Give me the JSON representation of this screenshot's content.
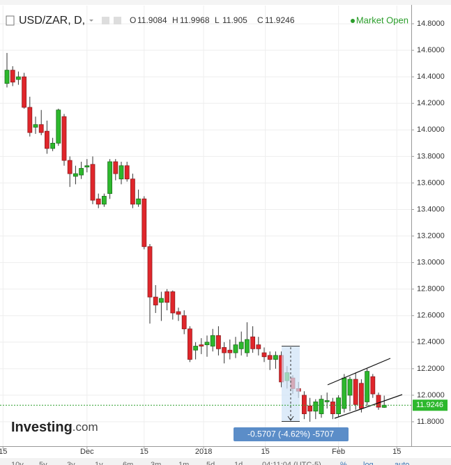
{
  "chart_data": {
    "type": "candlestick",
    "title": "USD/ZAR, D,",
    "status": "Market Open",
    "ohlc_labels": [
      "O",
      "H",
      "L",
      "C"
    ],
    "open": [
      14.35,
      14.45,
      14.38,
      14.4,
      14.17,
      14.02,
      14.04,
      13.99,
      13.86,
      13.9,
      14.1,
      13.77,
      13.65,
      13.66,
      13.72,
      13.74,
      13.48,
      13.44,
      13.52,
      13.76,
      13.63,
      13.73,
      13.63,
      13.44,
      13.48,
      13.12,
      12.74,
      12.7,
      12.78,
      12.78,
      12.63,
      12.6,
      12.5,
      12.34,
      12.38,
      12.38,
      12.37,
      12.45,
      12.36,
      12.34,
      12.32,
      12.35,
      12.32,
      12.44,
      12.38,
      12.32,
      12.3,
      12.27,
      12.3,
      12.11,
      12.13,
      12.05,
      12.0,
      11.92,
      11.88,
      11.86,
      11.95,
      11.95,
      11.86,
      11.9,
      12.0,
      12.12,
      12.09,
      11.95,
      12.14,
      12.0,
      11.9084
    ],
    "high": [
      14.58,
      14.48,
      14.44,
      14.43,
      14.25,
      14.1,
      14.15,
      14.07,
      13.94,
      14.16,
      14.12,
      13.8,
      13.73,
      13.76,
      13.78,
      13.8,
      13.52,
      13.52,
      13.78,
      13.78,
      13.76,
      13.76,
      13.67,
      13.55,
      13.5,
      13.14,
      12.83,
      12.78,
      12.8,
      12.79,
      12.66,
      12.64,
      12.52,
      12.4,
      12.43,
      12.45,
      12.5,
      12.52,
      12.4,
      12.42,
      12.44,
      12.48,
      12.55,
      12.52,
      12.44,
      12.36,
      12.33,
      12.33,
      12.33,
      12.22,
      12.15,
      12.1,
      12.03,
      11.98,
      11.97,
      12.0,
      12.02,
      11.98,
      12.0,
      12.16,
      12.14,
      12.17,
      12.12,
      12.2,
      12.16,
      12.02,
      11.9968
    ],
    "low": [
      14.32,
      14.33,
      14.34,
      14.16,
      13.95,
      13.97,
      13.96,
      13.82,
      13.84,
      13.88,
      13.73,
      13.57,
      13.59,
      13.63,
      13.68,
      13.44,
      13.41,
      13.42,
      13.48,
      13.62,
      13.59,
      13.61,
      13.41,
      13.42,
      13.1,
      12.54,
      12.62,
      12.56,
      12.64,
      12.57,
      12.56,
      12.46,
      12.25,
      12.27,
      12.31,
      12.29,
      12.33,
      12.3,
      12.24,
      12.27,
      12.28,
      12.3,
      12.29,
      12.32,
      12.3,
      12.25,
      12.19,
      12.2,
      12.06,
      12.05,
      12.01,
      11.98,
      11.82,
      11.8,
      11.82,
      11.83,
      11.9,
      11.82,
      11.84,
      11.87,
      11.88,
      11.89,
      11.87,
      11.92,
      11.98,
      11.89,
      11.905
    ],
    "close": [
      14.45,
      14.36,
      14.4,
      14.17,
      13.98,
      14.04,
      13.98,
      13.86,
      13.9,
      14.15,
      13.77,
      13.67,
      13.67,
      13.71,
      13.73,
      13.47,
      13.44,
      13.5,
      13.76,
      13.67,
      13.73,
      13.63,
      13.44,
      13.48,
      13.12,
      12.74,
      12.68,
      12.73,
      12.7,
      12.62,
      12.61,
      12.5,
      12.27,
      12.37,
      12.37,
      12.4,
      12.45,
      12.35,
      12.32,
      12.32,
      12.38,
      12.4,
      12.42,
      12.35,
      12.35,
      12.29,
      12.27,
      12.3,
      12.1,
      12.17,
      12.05,
      12.03,
      11.86,
      11.88,
      11.95,
      11.97,
      11.96,
      11.86,
      11.98,
      12.13,
      12.12,
      11.93,
      11.9,
      12.18,
      12.01,
      11.91,
      11.9246
    ],
    "up_color": "#2db82d",
    "down_color": "#e0262b",
    "xlim": [
      -1.22,
      70.73
    ],
    "xticks": [
      {
        "value": -0.7,
        "label": "15"
      },
      {
        "value": 14.0,
        "label": "Dec"
      },
      {
        "value": 24.0,
        "label": "15"
      },
      {
        "value": 34.4,
        "label": "2018"
      },
      {
        "value": 45.2,
        "label": "15"
      },
      {
        "value": 58.0,
        "label": "Feb"
      },
      {
        "value": 68.2,
        "label": "15"
      }
    ],
    "ylim": [
      11.616,
      14.937
    ],
    "yticks": [
      {
        "value": 11.8,
        "label": "11.8000"
      },
      {
        "value": 12.0,
        "label": "12.0000"
      },
      {
        "value": 12.2,
        "label": "12.2000"
      },
      {
        "value": 12.4,
        "label": "12.4000"
      },
      {
        "value": 12.6,
        "label": "12.6000"
      },
      {
        "value": 12.8,
        "label": "12.8000"
      },
      {
        "value": 13.0,
        "label": "13.0000"
      },
      {
        "value": 13.2,
        "label": "13.2000"
      },
      {
        "value": 13.4,
        "label": "13.4000"
      },
      {
        "value": 13.6,
        "label": "13.6000"
      },
      {
        "value": 13.8,
        "label": "13.8000"
      },
      {
        "value": 14.0,
        "label": "14.0000"
      },
      {
        "value": 14.2,
        "label": "14.2000"
      },
      {
        "value": 14.4,
        "label": "14.4000"
      },
      {
        "value": 14.6,
        "label": "14.6000"
      },
      {
        "value": 14.8,
        "label": "14.8000"
      }
    ],
    "grid": true,
    "measurement": "-0.5707 (-4.62%) -5707"
  },
  "logo": {
    "name": "Investing",
    "suffix": ".com"
  },
  "toolbar": {
    "ranges": [
      "10y",
      "5y",
      "3y",
      "1y",
      "6m",
      "3m",
      "1m",
      "5d",
      "1d"
    ],
    "time": "04:11:04 (UTC-5)",
    "options": [
      "%",
      "log",
      "auto"
    ]
  }
}
